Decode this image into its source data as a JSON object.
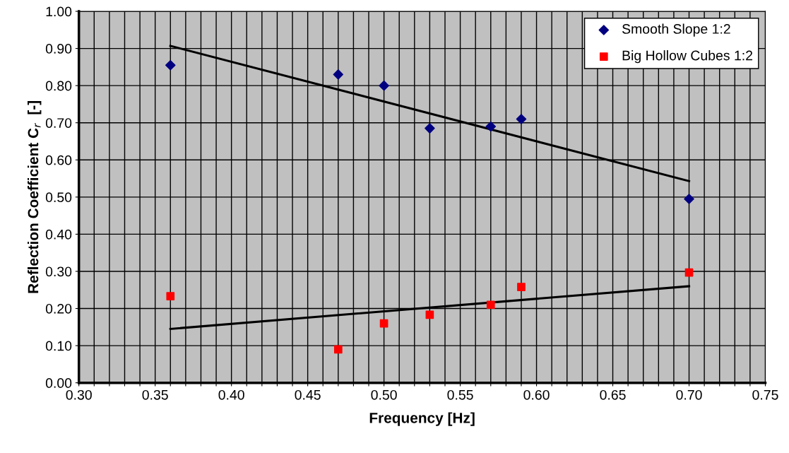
{
  "chart_data": {
    "type": "scatter",
    "xlabel": "Frequency [Hz]",
    "ylabel": "Reflection Coefficient C$_{r}$  [-]",
    "xlim": [
      0.3,
      0.75
    ],
    "ylim": [
      0,
      1
    ],
    "xticks": [
      {
        "value": 0.3,
        "label": "0.30"
      },
      {
        "value": 0.31,
        "label": null
      },
      {
        "value": 0.32,
        "label": null
      },
      {
        "value": 0.33,
        "label": null
      },
      {
        "value": 0.34,
        "label": null
      },
      {
        "value": 0.35,
        "label": "0.35"
      },
      {
        "value": 0.36,
        "label": null
      },
      {
        "value": 0.37,
        "label": null
      },
      {
        "value": 0.38,
        "label": null
      },
      {
        "value": 0.39,
        "label": null
      },
      {
        "value": 0.4,
        "label": "0.40"
      },
      {
        "value": 0.41,
        "label": null
      },
      {
        "value": 0.42,
        "label": null
      },
      {
        "value": 0.43,
        "label": null
      },
      {
        "value": 0.44,
        "label": null
      },
      {
        "value": 0.45,
        "label": "0.45"
      },
      {
        "value": 0.46,
        "label": null
      },
      {
        "value": 0.47,
        "label": null
      },
      {
        "value": 0.48,
        "label": null
      },
      {
        "value": 0.49,
        "label": null
      },
      {
        "value": 0.5,
        "label": "0.50"
      },
      {
        "value": 0.51,
        "label": null
      },
      {
        "value": 0.52,
        "label": null
      },
      {
        "value": 0.53,
        "label": null
      },
      {
        "value": 0.54,
        "label": null
      },
      {
        "value": 0.55,
        "label": "0.55"
      },
      {
        "value": 0.56,
        "label": null
      },
      {
        "value": 0.57,
        "label": null
      },
      {
        "value": 0.58,
        "label": null
      },
      {
        "value": 0.59,
        "label": null
      },
      {
        "value": 0.6,
        "label": "0.60"
      },
      {
        "value": 0.61,
        "label": null
      },
      {
        "value": 0.62,
        "label": null
      },
      {
        "value": 0.63,
        "label": null
      },
      {
        "value": 0.64,
        "label": null
      },
      {
        "value": 0.65,
        "label": "0.65"
      },
      {
        "value": 0.66,
        "label": null
      },
      {
        "value": 0.67,
        "label": null
      },
      {
        "value": 0.68,
        "label": null
      },
      {
        "value": 0.69,
        "label": null
      },
      {
        "value": 0.7,
        "label": "0.70"
      },
      {
        "value": 0.71,
        "label": null
      },
      {
        "value": 0.72,
        "label": null
      },
      {
        "value": 0.73,
        "label": null
      },
      {
        "value": 0.74,
        "label": null
      },
      {
        "value": 0.75,
        "label": "0.75"
      }
    ],
    "yticks": [
      {
        "value": 0,
        "label": "0.00"
      },
      {
        "value": 0.1,
        "label": "0.10"
      },
      {
        "value": 0.2,
        "label": "0.20"
      },
      {
        "value": 0.3,
        "label": "0.30"
      },
      {
        "value": 0.4,
        "label": "0.40"
      },
      {
        "value": 0.5,
        "label": "0.50"
      },
      {
        "value": 0.6,
        "label": "0.60"
      },
      {
        "value": 0.7,
        "label": "0.70"
      },
      {
        "value": 0.8,
        "label": "0.80"
      },
      {
        "value": 0.9,
        "label": "0.90"
      },
      {
        "value": 1.0,
        "label": "1.00"
      }
    ],
    "grid": true,
    "legend": "top right",
    "series": [
      {
        "name": "Smooth Slope 1:2",
        "color": "#000080",
        "marker": "diamond",
        "x": [
          0.36,
          0.47,
          0.5,
          0.53,
          0.57,
          0.59,
          0.7
        ],
        "values": [
          0.855,
          0.83,
          0.8,
          0.685,
          0.69,
          0.71,
          0.495
        ]
      },
      {
        "name": "Big Hollow Cubes 1:2",
        "color": "#ff0000",
        "marker": "square",
        "x": [
          0.36,
          0.47,
          0.5,
          0.53,
          0.57,
          0.59,
          0.7
        ],
        "values": [
          0.233,
          0.09,
          0.16,
          0.183,
          0.21,
          0.258,
          0.297
        ]
      },
      {
        "type": "line",
        "color": "#000000",
        "marker": "none",
        "x": [
          0.36,
          0.7
        ],
        "values": [
          0.907,
          0.543
        ]
      },
      {
        "type": "line",
        "color": "#000000",
        "marker": "none",
        "x": [
          0.36,
          0.7
        ],
        "values": [
          0.145,
          0.26
        ]
      }
    ]
  }
}
